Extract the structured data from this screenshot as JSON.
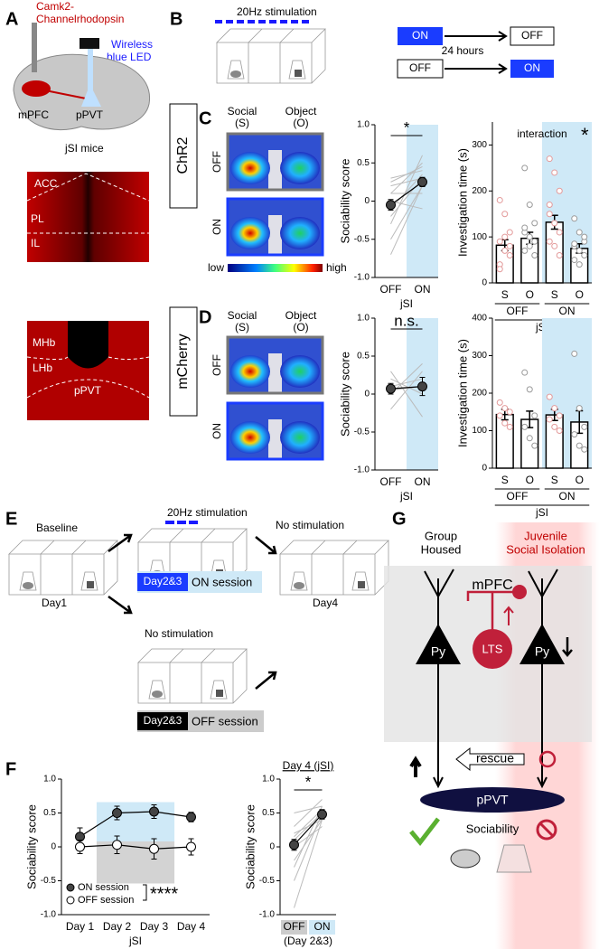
{
  "panels": {
    "A": {
      "label": "A",
      "construct": [
        "Camk2-",
        "Channelrhodopsin"
      ],
      "device": [
        "Wireless",
        "blue LED"
      ],
      "regions": [
        "mPFC",
        "pPVT"
      ],
      "caption": "jSI mice",
      "top_image": [
        "ACC",
        "PL",
        "IL"
      ],
      "bottom_image": [
        "MHb",
        "LHb",
        "pPVT"
      ]
    },
    "B": {
      "label": "B",
      "stimulation": "20Hz stimulation",
      "sequence": [
        [
          "ON",
          "OFF"
        ],
        [
          "OFF",
          "ON"
        ]
      ],
      "interval": "24 hours"
    },
    "C": {
      "label": "C",
      "group": "ChR2",
      "social": [
        "Social",
        "(S)"
      ],
      "object": [
        "Object",
        "(O)"
      ],
      "rows": [
        "OFF",
        "ON"
      ]
    },
    "heatmap_scale": [
      "low",
      "high"
    ],
    "D": {
      "label": "D",
      "group": "mCherry",
      "social": [
        "Social",
        "(S)"
      ],
      "object": [
        "Object",
        "(O)"
      ],
      "rows": [
        "OFF",
        "ON"
      ]
    },
    "E": {
      "label": "E",
      "stimulation": "20Hz stimulation",
      "baseline": "Baseline",
      "day1": "Day1",
      "on_session": [
        "Day2&3",
        "ON session"
      ],
      "no_stim_middle": "No stimulation",
      "off_session": [
        "Day2&3",
        "OFF session"
      ],
      "no_stim_right": "No stimulation",
      "day4": "Day4"
    },
    "F": {
      "label": "F"
    },
    "G": {
      "label": "G",
      "left_group": [
        "Group",
        "Housed"
      ],
      "right_group": [
        "Juvenile",
        "Social Isolation"
      ],
      "region": "mPFC",
      "left_cell": "Py",
      "interneuron": "LTS",
      "right_cell": "Py",
      "rescue": "rescue",
      "target": "pPVT",
      "behavior": "Sociability"
    }
  },
  "chart_data": [
    {
      "type": "line",
      "ylabel": "Sociability score",
      "xlabel": "jSI",
      "categories": [
        "OFF",
        "ON"
      ],
      "values": [
        -0.05,
        0.25
      ],
      "errors": [
        0.07,
        0.06
      ],
      "color": "#444444",
      "pairs": [
        [
          -0.5,
          0.2
        ],
        [
          0.3,
          0.4
        ],
        [
          -0.2,
          0.3
        ],
        [
          0.1,
          0.5
        ],
        [
          -0.7,
          0.2
        ],
        [
          0.0,
          -0.1
        ],
        [
          0.2,
          0.3
        ],
        [
          -0.3,
          0.6
        ],
        [
          0.1,
          0.1
        ],
        [
          -0.1,
          0.35
        ],
        [
          0.25,
          0.45
        ]
      ],
      "ylim": [
        -1,
        1
      ],
      "yticks": [
        {
          "value": -1,
          "label": "-1.0"
        },
        -0.5,
        0,
        0.5,
        {
          "value": 1,
          "label": "1.0"
        }
      ],
      "annotation": "*",
      "highlight_color": "#cfe9f7"
    },
    {
      "type": "bar",
      "ylabel": "Investigation time (s)",
      "xlabel": "jSI",
      "categories": [
        "S",
        "O",
        "S",
        "O"
      ],
      "groups": [
        "OFF",
        "ON"
      ],
      "values": [
        82,
        97,
        132,
        75
      ],
      "errors": [
        12,
        13,
        15,
        10
      ],
      "points": [
        [
          180,
          150,
          110,
          90,
          70,
          60,
          40,
          100,
          80,
          30
        ],
        [
          250,
          170,
          130,
          110,
          100,
          90,
          70,
          80,
          60,
          120
        ],
        [
          270,
          240,
          200,
          150,
          130,
          110,
          90,
          80,
          60,
          170
        ],
        [
          140,
          110,
          90,
          80,
          70,
          60,
          50,
          40,
          100,
          85
        ]
      ],
      "point_colors": [
        "#e39a9a",
        "#999999"
      ],
      "ylim": [
        0,
        350
      ],
      "yticks": [
        0,
        100,
        200,
        300
      ],
      "annotation": [
        "interaction",
        "*"
      ],
      "highlight_color": "#cfe9f7"
    },
    {
      "type": "line",
      "ylabel": "Sociability score",
      "xlabel": "jSI",
      "categories": [
        "OFF",
        "ON"
      ],
      "values": [
        0.07,
        0.1
      ],
      "errors": [
        0.07,
        0.12
      ],
      "color": "#444444",
      "pairs": [
        [
          0.2,
          0.0
        ],
        [
          0.0,
          0.4
        ],
        [
          -0.2,
          0.3
        ],
        [
          0.3,
          -0.3
        ],
        [
          0.1,
          0.2
        ],
        [
          0.05,
          0.1
        ]
      ],
      "ylim": [
        -1,
        1
      ],
      "yticks": [
        {
          "value": -1,
          "label": "-1.0"
        },
        -0.5,
        0,
        0.5,
        {
          "value": 1,
          "label": "1.0"
        }
      ],
      "annotation": "n.s.",
      "highlight_color": "#cfe9f7"
    },
    {
      "type": "bar",
      "ylabel": "Investigation time (s)",
      "xlabel": "jSI",
      "categories": [
        "S",
        "O",
        "S",
        "O"
      ],
      "groups": [
        "OFF",
        "ON"
      ],
      "values": [
        143,
        130,
        142,
        123
      ],
      "errors": [
        14,
        22,
        15,
        30
      ],
      "points": [
        [
          175,
          160,
          150,
          140,
          120,
          110
        ],
        [
          255,
          210,
          140,
          110,
          80,
          60
        ],
        [
          190,
          160,
          140,
          130,
          110,
          100
        ],
        [
          305,
          160,
          110,
          90,
          60,
          50
        ]
      ],
      "point_colors": [
        "#e39a9a",
        "#999999"
      ],
      "ylim": [
        0,
        400
      ],
      "yticks": [
        0,
        100,
        200,
        300,
        400
      ],
      "highlight_color": "#cfe9f7"
    },
    {
      "type": "line",
      "ylabel": "Sociability score",
      "xlabel": "jSI",
      "categories": [
        "Day 1",
        "Day 2",
        "Day 3",
        "Day 4"
      ],
      "series": [
        {
          "name": "ON session",
          "color": "#444444",
          "values": [
            0.15,
            0.5,
            0.52,
            0.44
          ],
          "errors": [
            0.13,
            0.1,
            0.1,
            0.07
          ]
        },
        {
          "name": "OFF session",
          "color": "#ffffff",
          "values": [
            0,
            0.03,
            -0.03,
            0
          ],
          "errors": [
            0.1,
            0.13,
            0.15,
            0.12
          ]
        }
      ],
      "legend": "lower left",
      "annotation": "****",
      "ylim": [
        -1,
        1
      ],
      "yticks": [
        {
          "value": -1,
          "label": "-1.0"
        },
        -0.5,
        0,
        0.5,
        {
          "value": 1,
          "label": "1.0"
        }
      ],
      "highlight_color": "#cfe9f7",
      "shade_color": "#c8c8c8"
    },
    {
      "type": "line",
      "title": "Day 4 (jSI)",
      "ylabel": "Sociability score",
      "xlabel": "(Day 2&3)",
      "categories": [
        "OFF",
        "ON"
      ],
      "values": [
        0.03,
        0.48
      ],
      "errors": [
        0.08,
        0.07
      ],
      "color": "#444444",
      "pairs": [
        [
          0.1,
          0.5
        ],
        [
          -0.3,
          0.6
        ],
        [
          0.2,
          0.4
        ],
        [
          -0.5,
          0.5
        ],
        [
          0.3,
          0.7
        ],
        [
          0.0,
          0.3
        ],
        [
          -0.2,
          0.4
        ],
        [
          0.5,
          0.6
        ],
        [
          -0.9,
          0.4
        ],
        [
          0.15,
          0.55
        ]
      ],
      "category_colors": [
        "#cccccc",
        "#cfe9f7"
      ],
      "annotation": "*",
      "ylim": [
        -1,
        1
      ],
      "yticks": [
        {
          "value": -1,
          "label": "-1.0"
        },
        -0.5,
        0,
        0.5,
        {
          "value": 1,
          "label": "1.0"
        }
      ]
    }
  ]
}
